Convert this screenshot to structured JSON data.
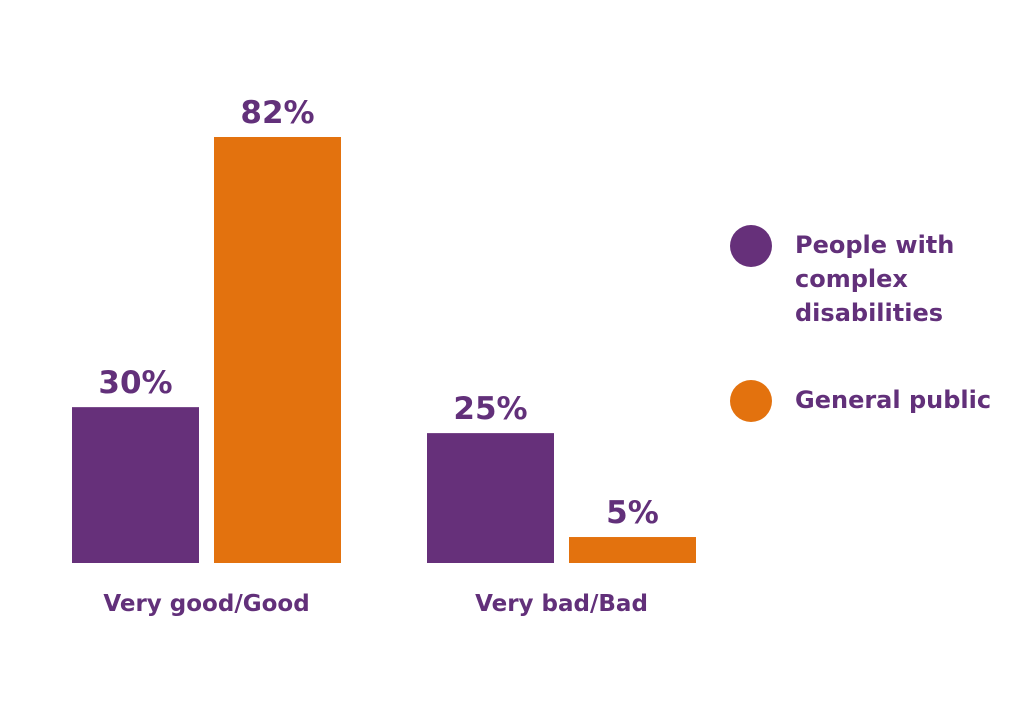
{
  "chart_data": {
    "type": "bar",
    "categories": [
      "Very good/Good",
      "Very bad/Bad"
    ],
    "series": [
      {
        "name": "People with complex disabilities",
        "values": [
          30,
          25
        ],
        "color": "#66307a"
      },
      {
        "name": "General public",
        "values": [
          82,
          5
        ],
        "color": "#e3720e"
      }
    ],
    "value_labels": [
      [
        "30%",
        "25%"
      ],
      [
        "82%",
        "5%"
      ]
    ],
    "value_suffix": "%",
    "ylim": [
      0,
      82
    ],
    "legend_position": "right",
    "grid": false,
    "text_color": "#62307a"
  },
  "legend": {
    "items": [
      {
        "label": "People with complex disabilities",
        "color": "#66307a"
      },
      {
        "label": "General public",
        "color": "#e3720e"
      }
    ]
  }
}
